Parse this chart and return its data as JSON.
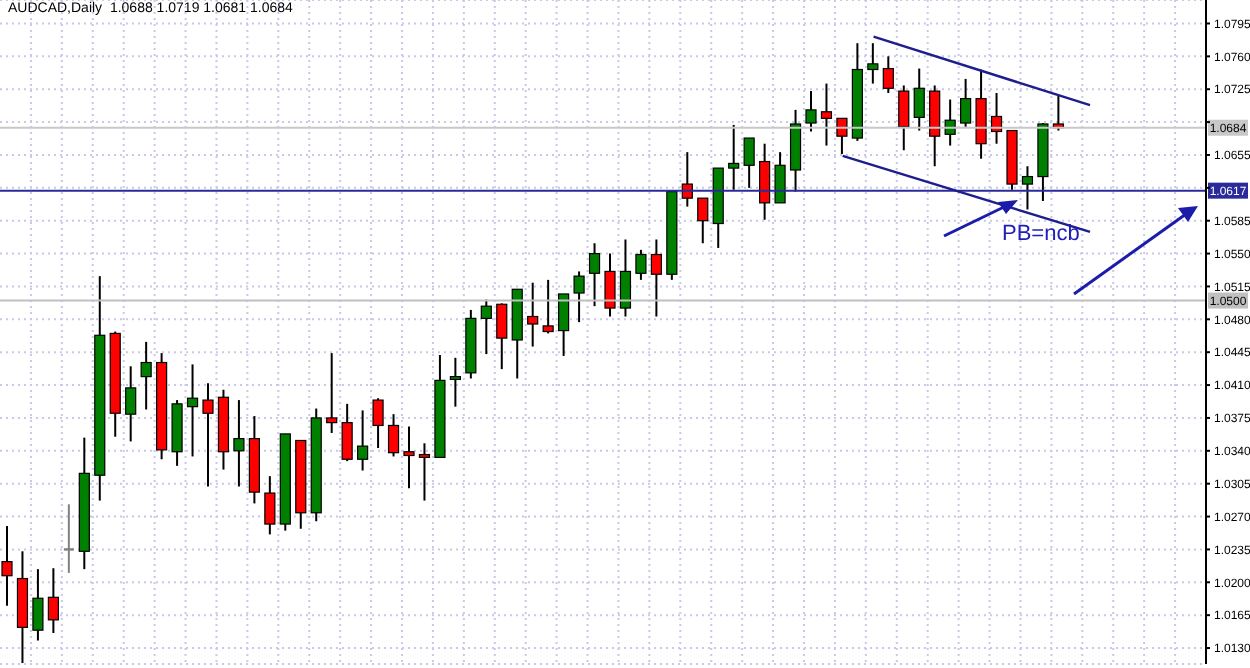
{
  "chart_data": {
    "type": "candlestick",
    "title": "AUDCAD,Daily  1.0688 1.0719 1.0681 1.0684",
    "categories": [
      null,
      null,
      null,
      null,
      null,
      null,
      null,
      null,
      null,
      null,
      null,
      null,
      null,
      null,
      null,
      null,
      null,
      null,
      null,
      null,
      null,
      null,
      null,
      null,
      null,
      null,
      null,
      null,
      null,
      null,
      null,
      null,
      null,
      null,
      null,
      null,
      null,
      null,
      null,
      null,
      null,
      null,
      null,
      null,
      null,
      null,
      null,
      null,
      null,
      null,
      null,
      null,
      null,
      null,
      null,
      null,
      null,
      null,
      null,
      null,
      null,
      null,
      null,
      null,
      null,
      null,
      null,
      null,
      null,
      null,
      null,
      null,
      null,
      null,
      null,
      null,
      null,
      null
    ],
    "ohlc": [
      [
        1.0222,
        1.026,
        1.0175,
        1.0207
      ],
      [
        1.0204,
        1.0233,
        1.0114,
        1.0152
      ],
      [
        1.0149,
        1.0214,
        1.0138,
        1.0183
      ],
      [
        1.0184,
        1.0215,
        1.0146,
        1.016
      ],
      [
        1.0235,
        1.0283,
        1.021,
        1.0235
      ],
      [
        1.0233,
        1.0354,
        1.0214,
        1.0316
      ],
      [
        1.0314,
        1.0526,
        1.0287,
        1.0463
      ],
      [
        1.0465,
        1.0467,
        1.0355,
        1.038
      ],
      [
        1.0379,
        1.043,
        1.035,
        1.0407
      ],
      [
        1.0419,
        1.0456,
        1.0384,
        1.0434
      ],
      [
        1.0434,
        1.0444,
        1.0331,
        1.0341
      ],
      [
        1.0339,
        1.0394,
        1.0324,
        1.039
      ],
      [
        1.0387,
        1.0432,
        1.0334,
        1.0396
      ],
      [
        1.0394,
        1.0412,
        1.0302,
        1.038
      ],
      [
        1.0397,
        1.0405,
        1.032,
        1.0339
      ],
      [
        1.034,
        1.0394,
        1.0302,
        1.0353
      ],
      [
        1.0353,
        1.0377,
        1.0284,
        1.0296
      ],
      [
        1.0295,
        1.0313,
        1.0251,
        1.0262
      ],
      [
        1.0262,
        1.0358,
        1.0255,
        1.0358
      ],
      [
        1.0351,
        1.0351,
        1.0257,
        1.0274
      ],
      [
        1.0274,
        1.0385,
        1.0265,
        1.0375
      ],
      [
        1.0375,
        1.0444,
        1.0359,
        1.037
      ],
      [
        1.037,
        1.039,
        1.0329,
        1.0331
      ],
      [
        1.0331,
        1.0383,
        1.0319,
        1.0345
      ],
      [
        1.0394,
        1.0396,
        1.0343,
        1.0367
      ],
      [
        1.0367,
        1.0379,
        1.0334,
        1.0338
      ],
      [
        1.0339,
        1.0366,
        1.03,
        1.0335
      ],
      [
        1.0336,
        1.0348,
        1.0287,
        1.0333
      ],
      [
        1.0333,
        1.0442,
        1.0333,
        1.0415
      ],
      [
        1.0416,
        1.0439,
        1.0387,
        1.0419
      ],
      [
        1.0423,
        1.049,
        1.0417,
        1.0481
      ],
      [
        1.0481,
        1.0501,
        1.0443,
        1.0494
      ],
      [
        1.0496,
        1.0497,
        1.0427,
        1.046
      ],
      [
        1.0458,
        1.0512,
        1.0417,
        1.0512
      ],
      [
        1.0483,
        1.0519,
        1.0451,
        1.0475
      ],
      [
        1.0473,
        1.0522,
        1.0465,
        1.0467
      ],
      [
        1.0468,
        1.0507,
        1.0441,
        1.0507
      ],
      [
        1.0508,
        1.0531,
        1.0477,
        1.0526
      ],
      [
        1.0529,
        1.0561,
        1.0494,
        1.055
      ],
      [
        1.0531,
        1.055,
        1.0483,
        1.0492
      ],
      [
        1.0492,
        1.0565,
        1.0483,
        1.0531
      ],
      [
        1.0529,
        1.0554,
        1.0522,
        1.0549
      ],
      [
        1.0549,
        1.0565,
        1.0483,
        1.0528
      ],
      [
        1.0528,
        1.0616,
        1.0522,
        1.0616
      ],
      [
        1.0624,
        1.0658,
        1.06,
        1.0609
      ],
      [
        1.0609,
        1.0609,
        1.0561,
        1.0585
      ],
      [
        1.0582,
        1.0641,
        1.0556,
        1.0641
      ],
      [
        1.0641,
        1.0687,
        1.0618,
        1.0646
      ],
      [
        1.0644,
        1.0673,
        1.062,
        1.0673
      ],
      [
        1.0648,
        1.0667,
        1.0586,
        1.0604
      ],
      [
        1.0604,
        1.0658,
        1.0604,
        1.0644
      ],
      [
        1.0639,
        1.0703,
        1.0616,
        1.0688
      ],
      [
        1.0689,
        1.0723,
        1.068,
        1.0703
      ],
      [
        1.0701,
        1.0731,
        1.0665,
        1.0694
      ],
      [
        1.0694,
        1.0694,
        1.0656,
        1.0675
      ],
      [
        1.0673,
        1.0774,
        1.067,
        1.0746
      ],
      [
        1.0746,
        1.0774,
        1.0731,
        1.0752
      ],
      [
        1.0747,
        1.076,
        1.0721,
        1.0726
      ],
      [
        1.0723,
        1.0729,
        1.066,
        1.0685
      ],
      [
        1.0695,
        1.0747,
        1.0681,
        1.0726
      ],
      [
        1.0723,
        1.0729,
        1.0643,
        1.0675
      ],
      [
        1.0677,
        1.0714,
        1.0665,
        1.0692
      ],
      [
        1.0689,
        1.0736,
        1.0685,
        1.0715
      ],
      [
        1.0715,
        1.0746,
        1.0651,
        1.0667
      ],
      [
        1.0696,
        1.0721,
        1.0667,
        1.068
      ],
      [
        1.0681,
        1.0681,
        1.0618,
        1.0624
      ],
      [
        1.0624,
        1.0643,
        1.0597,
        1.0632
      ],
      [
        1.0632,
        1.0689,
        1.0606,
        1.0688
      ],
      [
        1.0688,
        1.0719,
        1.0681,
        1.0684
      ],
      null,
      null,
      null,
      null,
      null,
      null,
      null,
      null,
      null
    ],
    "colors": [
      "#ff0000",
      "#ff0000",
      "#008000",
      "#ff0000",
      "#808080",
      "#008000",
      "#008000",
      "#ff0000",
      "#008000",
      "#008000",
      "#ff0000",
      "#008000",
      "#008000",
      "#ff0000",
      "#ff0000",
      "#008000",
      "#ff0000",
      "#ff0000",
      "#008000",
      "#ff0000",
      "#008000",
      "#ff0000",
      "#ff0000",
      "#008000",
      "#ff0000",
      "#ff0000",
      "#ff0000",
      "#ff0000",
      "#008000",
      "#008000",
      "#008000",
      "#008000",
      "#ff0000",
      "#008000",
      "#ff0000",
      "#ff0000",
      "#008000",
      "#008000",
      "#008000",
      "#ff0000",
      "#008000",
      "#008000",
      "#ff0000",
      "#008000",
      "#ff0000",
      "#ff0000",
      "#008000",
      "#008000",
      "#008000",
      "#ff0000",
      "#008000",
      "#008000",
      "#008000",
      "#ff0000",
      "#ff0000",
      "#008000",
      "#008000",
      "#ff0000",
      "#ff0000",
      "#008000",
      "#ff0000",
      "#008000",
      "#008000",
      "#ff0000",
      "#ff0000",
      "#ff0000",
      "#008000",
      "#008000",
      "#ff0000",
      null,
      null,
      null,
      null,
      null,
      null,
      null,
      null,
      null
    ],
    "series": [
      {
        "type": "line",
        "color": "#1e1e8c",
        "values": [
          null,
          null,
          null,
          null,
          null,
          null,
          null,
          null,
          null,
          null,
          null,
          null,
          null,
          null,
          null,
          null,
          null,
          null,
          null,
          null,
          null,
          null,
          null,
          null,
          null,
          null,
          null,
          null,
          null,
          null,
          null,
          null,
          null,
          null,
          null,
          null,
          null,
          null,
          null,
          null,
          null,
          null,
          null,
          null,
          null,
          null,
          null,
          null,
          null,
          null,
          null,
          null,
          null,
          null,
          null,
          null,
          1.0781,
          null,
          null,
          null,
          null,
          null,
          null,
          null,
          null,
          null,
          null,
          null,
          null,
          null,
          1.0708,
          null,
          null,
          null,
          null,
          null,
          null,
          null
        ]
      },
      {
        "type": "line",
        "color": "#1e1e8c",
        "values": [
          null,
          null,
          null,
          null,
          null,
          null,
          null,
          null,
          null,
          null,
          null,
          null,
          null,
          null,
          null,
          null,
          null,
          null,
          null,
          null,
          null,
          null,
          null,
          null,
          null,
          null,
          null,
          null,
          null,
          null,
          null,
          null,
          null,
          null,
          null,
          null,
          null,
          null,
          null,
          null,
          null,
          null,
          null,
          null,
          null,
          null,
          null,
          null,
          null,
          null,
          null,
          null,
          null,
          null,
          1.0654,
          null,
          null,
          null,
          null,
          null,
          null,
          null,
          null,
          null,
          null,
          null,
          null,
          null,
          null,
          null,
          1.0573,
          null,
          null,
          null,
          null,
          null,
          null,
          null
        ]
      }
    ],
    "ylim": [
      1.0113,
      1.082
    ],
    "yticks": [
      {
        "value": 1.013,
        "label": "1.0130"
      },
      1.0165,
      {
        "value": 1.02,
        "label": "1.0200"
      },
      1.0235,
      {
        "value": 1.027,
        "label": "1.0270"
      },
      1.0305,
      {
        "value": 1.034,
        "label": "1.0340"
      },
      1.0375,
      {
        "value": 1.041,
        "label": "1.0410"
      },
      1.0445,
      {
        "value": 1.048,
        "label": "1.0480"
      },
      1.0515,
      {
        "value": 1.055,
        "label": "1.0550"
      },
      1.0585,
      {
        "value": 1.062,
        "label": null
      },
      1.0655,
      {
        "value": 1.069,
        "label": null
      },
      1.0725,
      {
        "value": 1.076,
        "label": "1.0760"
      },
      1.0795
    ],
    "tick_labels": "y",
    "grid": true,
    "ref_lines": [
      {
        "axis": "y",
        "value": 1.0684,
        "label": "1.0684",
        "color": "#c8c8c8"
      },
      {
        "axis": "y",
        "value": 1.0617,
        "label": "1.0617",
        "color": "#2a2a9a"
      },
      {
        "axis": "y",
        "value": 1.05,
        "label": "1.0500",
        "color": "#c0c0c0"
      }
    ],
    "annotations": [
      "PB=ncb"
    ]
  }
}
